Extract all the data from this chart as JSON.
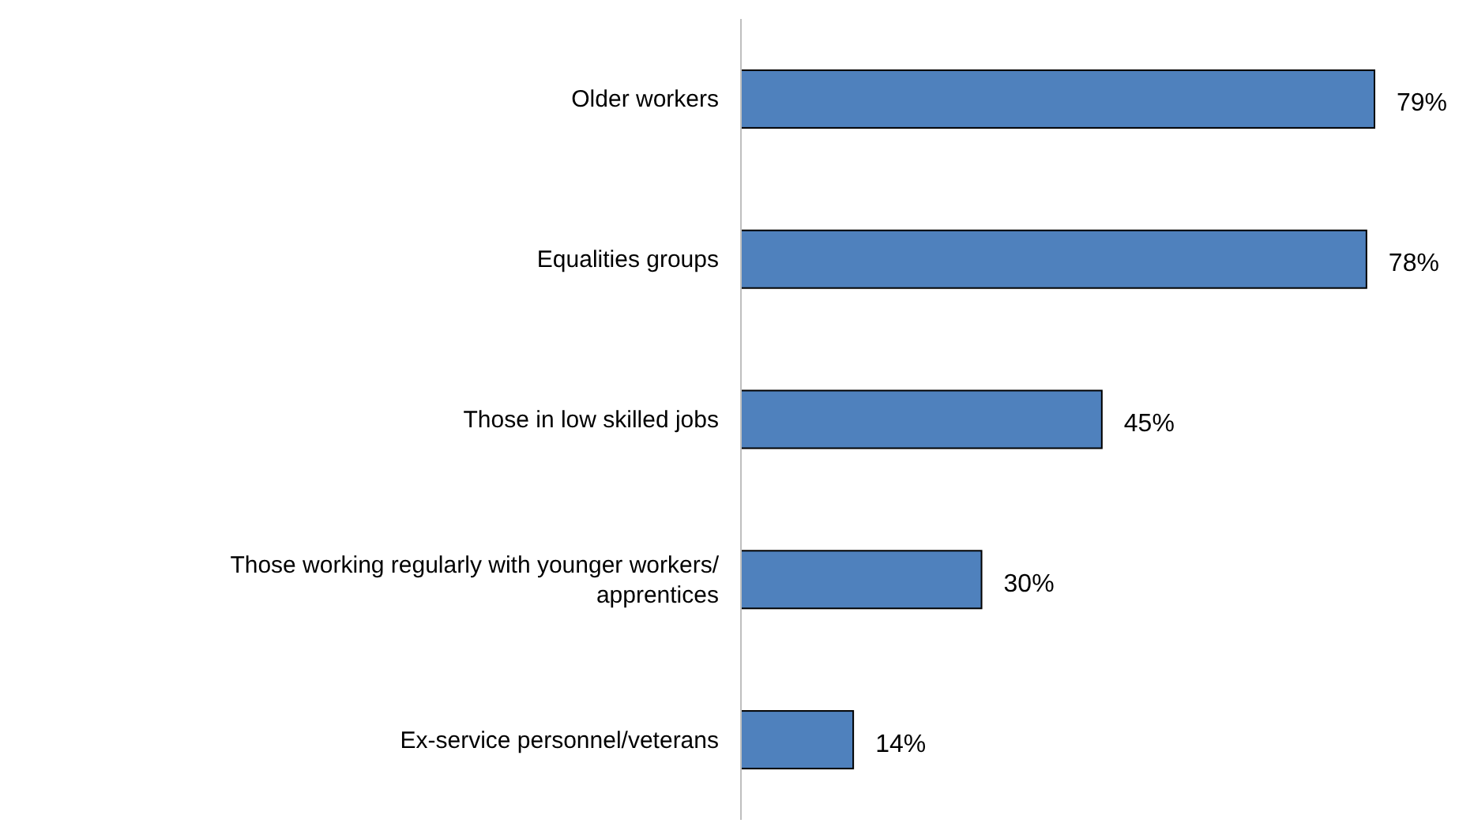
{
  "chart_data": {
    "type": "bar",
    "orientation": "horizontal",
    "categories": [
      "Older workers",
      "Equalities groups",
      "Those in low skilled jobs",
      "Those working regularly with younger workers/ apprentices",
      "Ex-service personnel/veterans"
    ],
    "values": [
      79,
      78,
      45,
      30,
      14
    ],
    "value_labels": [
      "79%",
      "78%",
      "45%",
      "30%",
      "14%"
    ],
    "color": "#4f81bd"
  }
}
